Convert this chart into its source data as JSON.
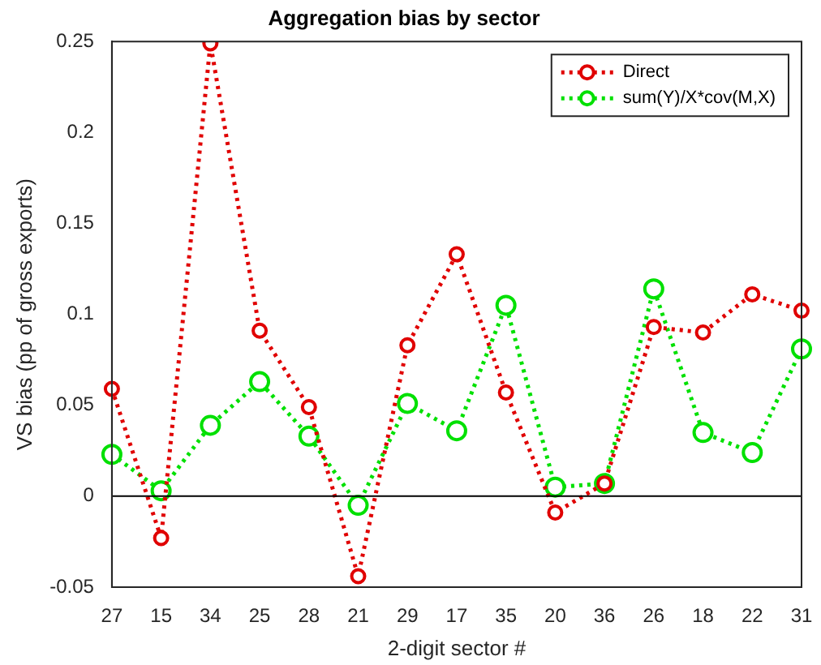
{
  "chart_data": {
    "type": "line",
    "title": "Aggregation bias by sector",
    "xlabel": "2-digit sector #",
    "ylabel": "VS bias (pp of gross exports)",
    "categories": [
      "27",
      "15",
      "34",
      "25",
      "28",
      "21",
      "29",
      "17",
      "35",
      "20",
      "36",
      "26",
      "18",
      "22",
      "31"
    ],
    "series": [
      {
        "name": "Direct",
        "color": "#e00000",
        "values": [
          0.059,
          -0.023,
          0.249,
          0.091,
          0.049,
          -0.044,
          0.083,
          0.133,
          0.057,
          -0.009,
          0.007,
          0.093,
          0.09,
          0.111,
          0.102
        ]
      },
      {
        "name": "sum(Y)/X*cov(M,X)",
        "color": "#00e000",
        "values": [
          0.023,
          0.003,
          0.039,
          0.063,
          0.033,
          -0.005,
          0.051,
          0.036,
          0.105,
          0.005,
          0.007,
          0.114,
          0.035,
          0.024,
          0.081
        ]
      }
    ],
    "ylim": [
      -0.05,
      0.25
    ],
    "yticks": [
      -0.05,
      0,
      0.05,
      0.1,
      0.15,
      0.2,
      0.25
    ],
    "ref_lines": [
      {
        "axis": "y",
        "value": 0,
        "color": "#000000"
      }
    ],
    "grid": false,
    "legend": "top right",
    "marker": "circle",
    "line_style": "dotted"
  }
}
